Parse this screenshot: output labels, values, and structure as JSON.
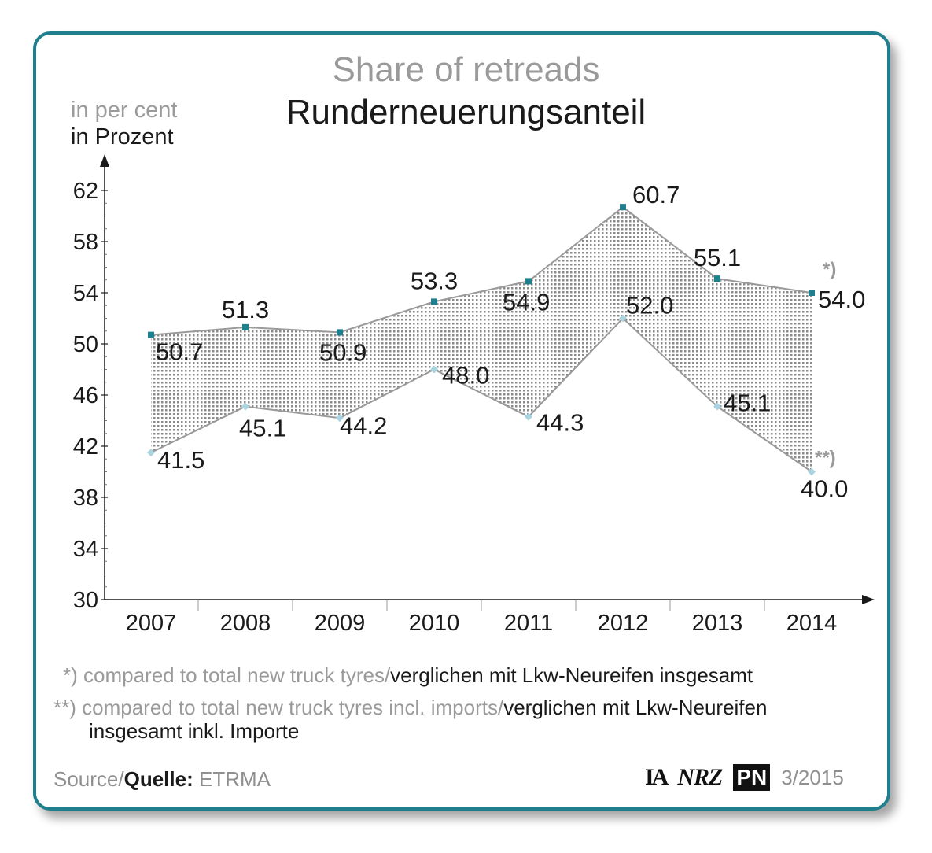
{
  "chart_data": {
    "type": "area",
    "title": "Share of retreads",
    "subtitle": "Runderneuerungsanteil",
    "ylabel_en": "in per cent",
    "ylabel_de": "in Prozent",
    "x": [
      "2007",
      "2008",
      "2009",
      "2010",
      "2011",
      "2012",
      "2013",
      "2014"
    ],
    "yticks": [
      30,
      34,
      38,
      42,
      46,
      50,
      54,
      58,
      62
    ],
    "ylim": [
      30,
      63
    ],
    "series": [
      {
        "name": "",
        "marker": "*)",
        "values": [
          50.7,
          51.3,
          50.9,
          53.3,
          54.9,
          60.7,
          55.1,
          54.0
        ],
        "labels": [
          "50.7",
          "51.3",
          "50.9",
          "53.3",
          "54.9",
          "60.7",
          "55.1",
          "54.0"
        ]
      },
      {
        "name": "",
        "marker": "**)",
        "values": [
          41.5,
          45.1,
          44.2,
          48.0,
          44.3,
          52.0,
          45.1,
          40.0
        ],
        "labels": [
          "41.5",
          "45.1",
          "44.2",
          "48.0",
          "44.3",
          "52.0",
          "45.1",
          "40.0"
        ]
      }
    ],
    "fill_between": true,
    "colors": {
      "upper_marker": "#1f7f8c",
      "lower_marker": "#a9d4e0",
      "line": "#9a9a9a",
      "fill": "#8a8a8a",
      "axis": "#1a1a1a"
    }
  },
  "footnotes": {
    "one_grey": "*) compared to total new truck tyres/",
    "one_dark": "verglichen mit Lkw-Neureifen insgesamt",
    "two_grey": "**) compared to total new truck tyres incl. imports/",
    "two_dark": "verglichen mit Lkw-Neureifen",
    "two_dark_line2": "insgesamt inkl. Importe"
  },
  "source": {
    "source_label": "Source/",
    "quelle_label": "Quelle:",
    "value": "ETRMA"
  },
  "logos": {
    "ia": "IA",
    "nrz": "NRZ",
    "pn": "PN",
    "date": "3/2015"
  },
  "frame_color": "#1f7f8c"
}
